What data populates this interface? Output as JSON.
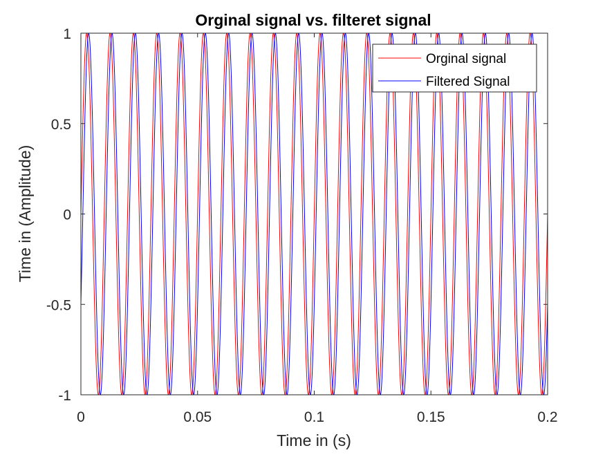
{
  "chart_data": {
    "type": "line",
    "title": "Orginal signal vs. filteret signal",
    "xlabel": "Time in (s)",
    "ylabel": "Time in (Amplitude)",
    "xlim": [
      0,
      0.2
    ],
    "ylim": [
      -1,
      1
    ],
    "xticks": [
      0,
      0.05,
      0.1,
      0.15,
      0.2
    ],
    "xtick_labels": [
      "0",
      "0.05",
      "0.1",
      "0.15",
      "0.2"
    ],
    "yticks": [
      -1,
      -0.5,
      0,
      0.5,
      1
    ],
    "ytick_labels": [
      "-1",
      "-0.5",
      "0",
      "0.5",
      "1"
    ],
    "grid": false,
    "legend_position": "top-right",
    "series": [
      {
        "name": "Orginal signal",
        "color": "#ff0000",
        "function": "sine",
        "frequency_hz": 100,
        "amplitude": 1,
        "phase_rad": 0,
        "x_start": 0,
        "x_end": 0.2
      },
      {
        "name": "Filtered Signal",
        "color": "#0000ff",
        "function": "sine",
        "frequency_hz": 100,
        "amplitude": 1,
        "phase_rad": -0.52,
        "x_start": 0,
        "x_end": 0.2
      }
    ]
  }
}
